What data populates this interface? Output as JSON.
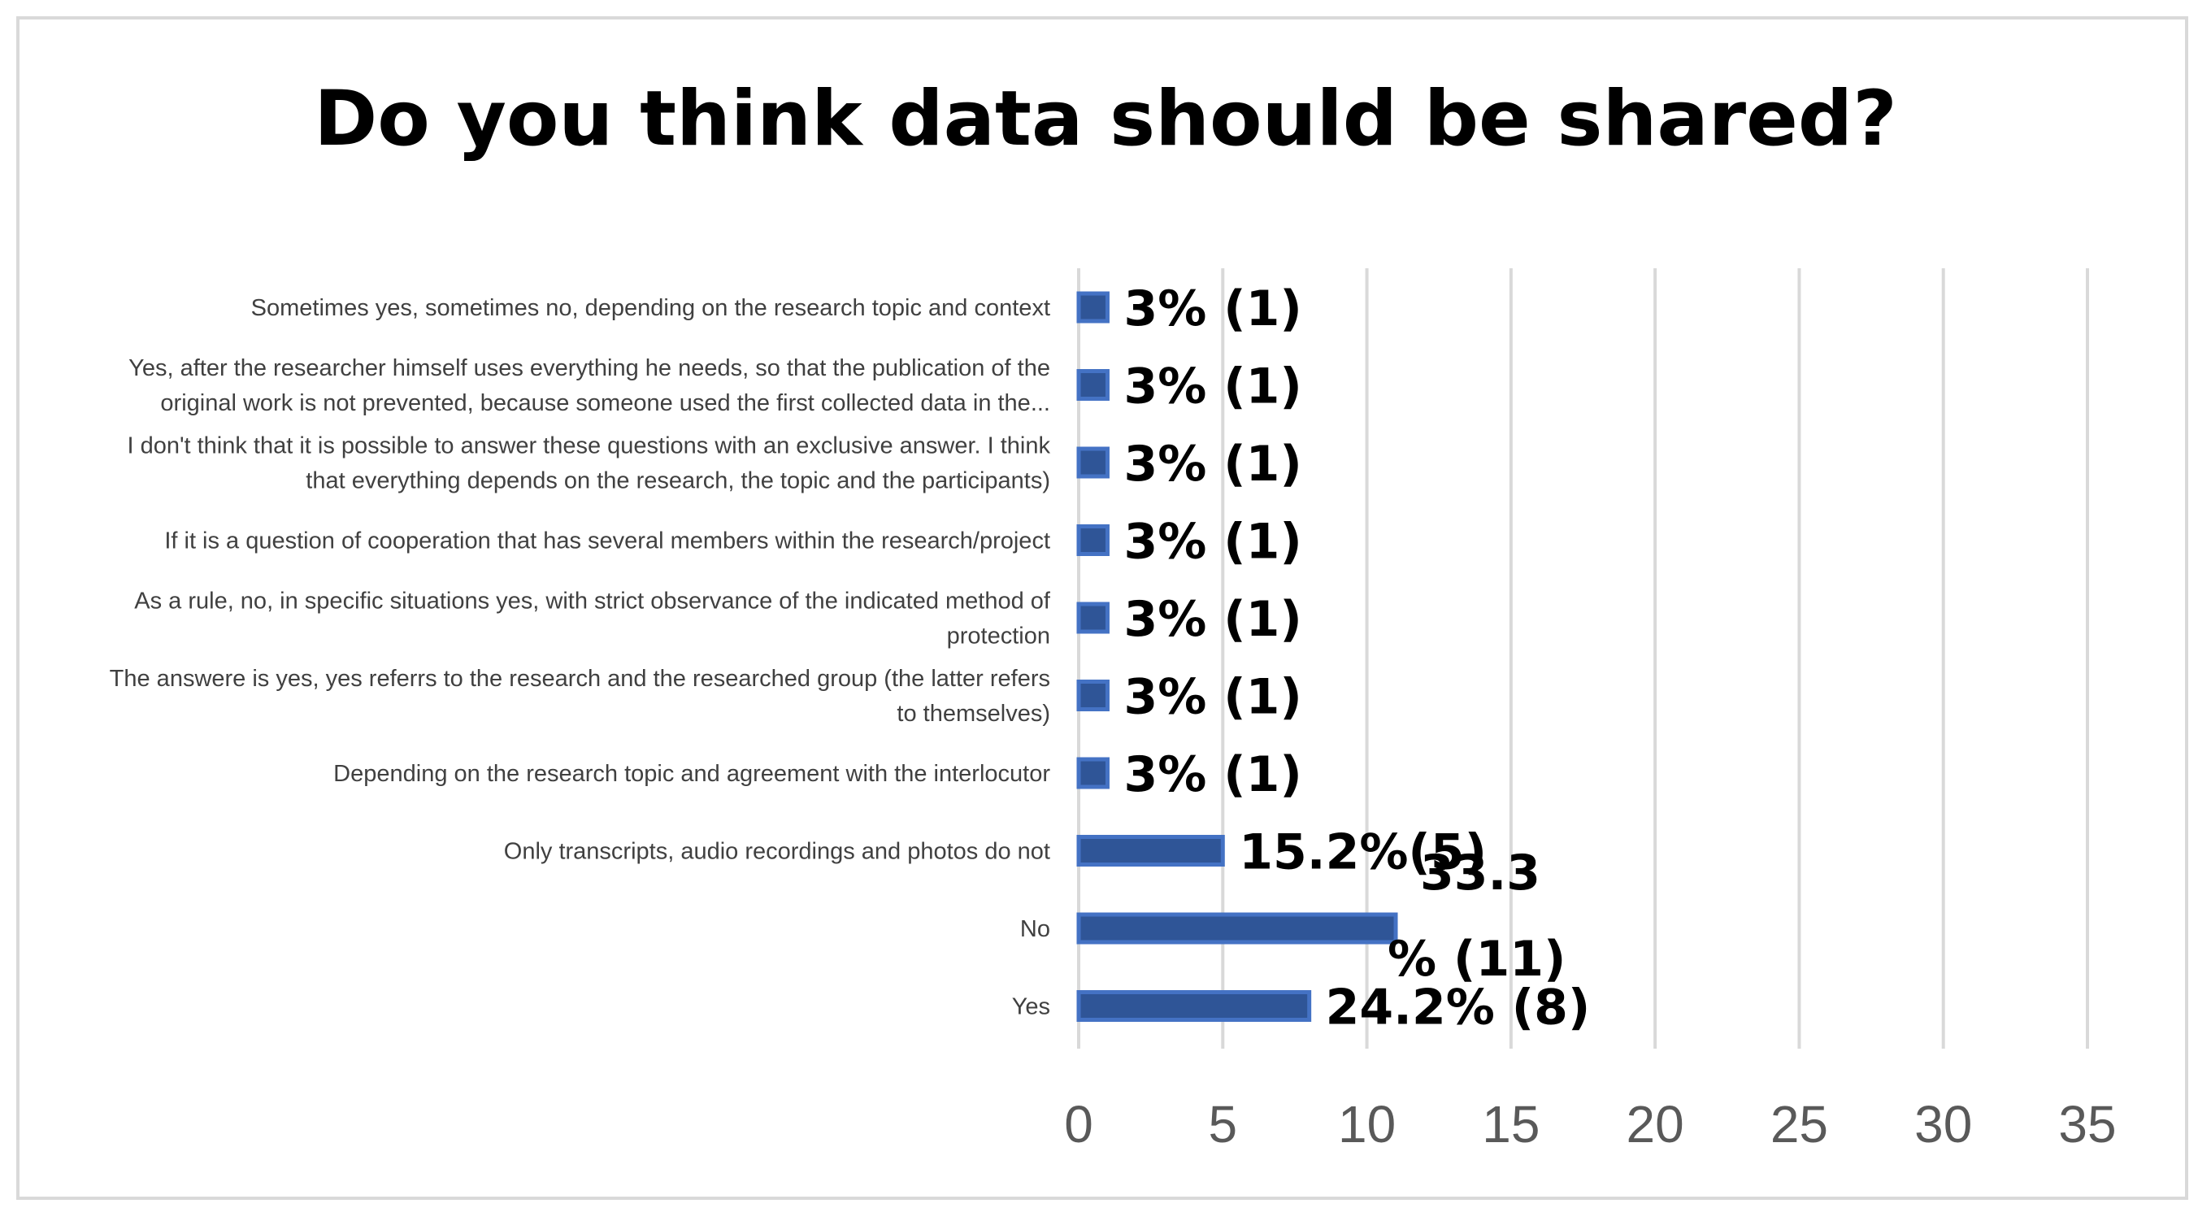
{
  "chart_data": {
    "type": "bar",
    "orientation": "horizontal",
    "title": "Do you think data should be shared?",
    "xlabel": "",
    "ylabel": "",
    "xlim": [
      0,
      35
    ],
    "x_ticks": [
      "0",
      "5",
      "10",
      "15",
      "20",
      "25",
      "30",
      "35"
    ],
    "grid": "vertical",
    "bar_color": "#2f5597",
    "bar_edge_color": "#4472c4",
    "categories": [
      {
        "lines": [
          "Sometimes yes, sometimes no, depending on the research topic and context"
        ],
        "value": 1,
        "label_lines": [
          "3% (1)"
        ]
      },
      {
        "lines": [
          "Yes, after the researcher himself uses everything he needs, so that the publication of the",
          "original work is not prevented, because someone used the first collected data in the..."
        ],
        "value": 1,
        "label_lines": [
          "3% (1)"
        ]
      },
      {
        "lines": [
          "I don't think that it is possible to answer these questions with an exclusive answer. I think",
          "that everything depends on the research, the topic and the participants)"
        ],
        "value": 1,
        "label_lines": [
          "3% (1)"
        ]
      },
      {
        "lines": [
          "If it is a question of cooperation that has several members within the research/project"
        ],
        "value": 1,
        "label_lines": [
          "3% (1)"
        ]
      },
      {
        "lines": [
          "As a rule, no, in specific situations yes, with strict observance of the indicated method of",
          "protection"
        ],
        "value": 1,
        "label_lines": [
          "3% (1)"
        ]
      },
      {
        "lines": [
          "The answere is yes, yes referrs to the research and the researched group (the latter refers",
          "to themselves)"
        ],
        "value": 1,
        "label_lines": [
          "3% (1)"
        ]
      },
      {
        "lines": [
          "Depending on the research topic and agreement with the interlocutor"
        ],
        "value": 1,
        "label_lines": [
          "3% (1)"
        ]
      },
      {
        "lines": [
          "Only transcripts, audio recordings and photos do not"
        ],
        "value": 5,
        "label_lines": [
          "15.2%(5)"
        ]
      },
      {
        "lines": [
          "No"
        ],
        "value": 11,
        "label_lines": [
          "33.3",
          "% (11)"
        ]
      },
      {
        "lines": [
          "Yes"
        ],
        "value": 8,
        "label_lines": [
          "24.2% (8)"
        ]
      }
    ]
  }
}
